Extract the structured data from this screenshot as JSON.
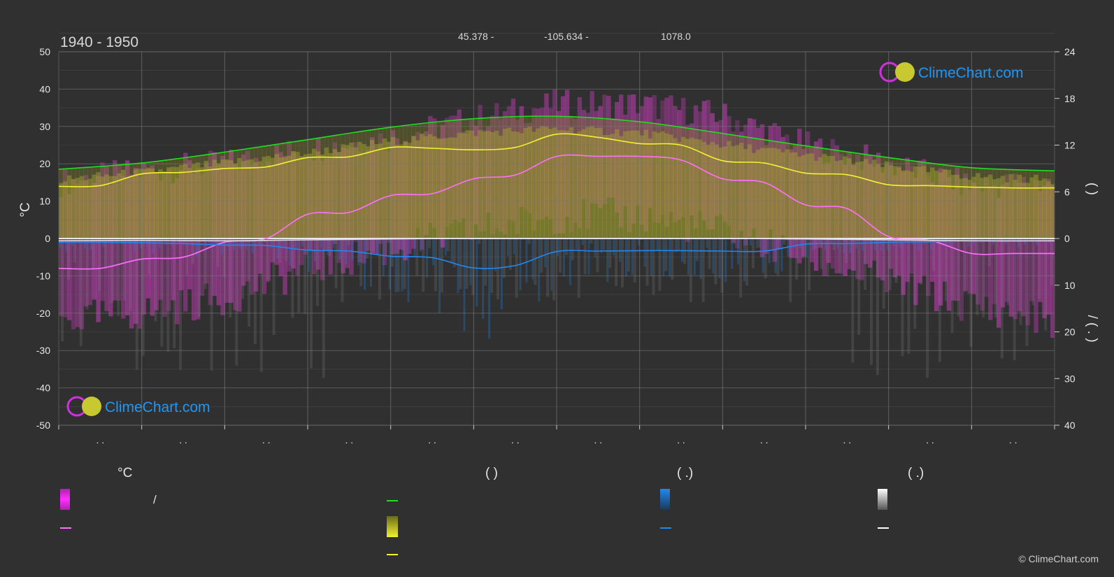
{
  "header": {
    "period": "1940 - 1950",
    "latitude": "45.378 -",
    "longitude": "-105.634 -",
    "elevation": "1078.0"
  },
  "branding": {
    "logo_text": "ClimeChart.com",
    "copyright": "© ClimeChart.com"
  },
  "colors": {
    "background": "#303030",
    "temperature_band": "#e040d0",
    "daylight": "#22dd22",
    "sunshine": "#f2f230",
    "max_temp_line": "#f2f230",
    "mean_temp_line": "#ff70ff",
    "rain": "#2288ee",
    "snow": "#dddddd"
  },
  "legend": {
    "temperature": {
      "heading": "°C",
      "range_separator": "/"
    },
    "sun": {
      "heading": "(          )"
    },
    "rain": {
      "heading": "(   .)"
    },
    "snow": {
      "heading": "(   .)"
    }
  },
  "chart_data": {
    "type": "area",
    "title": "1940 - 1950",
    "x_labels": [
      ". .",
      ". .",
      ". .",
      ". .",
      ". .",
      ". .",
      ". .",
      ". .",
      ". .",
      ". .",
      ". .",
      ". ."
    ],
    "left_axis": {
      "label": "°C",
      "ylim": [
        -50,
        50
      ],
      "ticks": [
        50,
        40,
        30,
        20,
        10,
        0,
        -10,
        -20,
        -30,
        -40,
        -50
      ]
    },
    "right_axis_top": {
      "label": "(  )",
      "range": [
        0,
        24
      ],
      "ticks": [
        24,
        18,
        12,
        6,
        0
      ]
    },
    "right_axis_bottom": {
      "label": "/ ( . )",
      "range": [
        0,
        40
      ],
      "ticks": [
        0,
        10,
        20,
        30,
        40
      ]
    },
    "grid": true,
    "series": [
      {
        "key": "daylight",
        "axis": "hours",
        "x": [
          0,
          1,
          2,
          3,
          4,
          5,
          6,
          7,
          8,
          9,
          10,
          11,
          12
        ],
        "values": [
          8.9,
          9.7,
          11.1,
          12.7,
          14.3,
          15.4,
          15.7,
          15.0,
          13.5,
          11.9,
          10.4,
          9.1,
          8.7
        ]
      },
      {
        "key": "sunshine_max_line",
        "axis": "hours",
        "x": [
          0,
          0.5,
          1,
          1.5,
          2,
          2.5,
          3,
          3.5,
          4,
          4.5,
          5,
          5.5,
          6,
          6.5,
          7,
          7.5,
          8,
          8.5,
          9,
          9.5,
          10,
          10.5,
          11,
          11.5,
          12
        ],
        "values": [
          6.7,
          6.8,
          8.3,
          8.5,
          9.0,
          9.2,
          10.4,
          10.5,
          11.7,
          11.6,
          11.4,
          11.7,
          13.4,
          13.0,
          12.2,
          12.0,
          10.0,
          9.7,
          8.4,
          8.2,
          6.9,
          6.8,
          6.6,
          6.5,
          6.5
        ]
      },
      {
        "key": "mean_temperature",
        "axis": "°C",
        "x": [
          0,
          0.5,
          1,
          1.5,
          2,
          2.5,
          3,
          3.5,
          4,
          4.5,
          5,
          5.5,
          6,
          6.5,
          7,
          7.5,
          8,
          8.5,
          9,
          9.5,
          10,
          10.5,
          11,
          11.5,
          12
        ],
        "values": [
          -8,
          -8,
          -5.5,
          -5,
          -1,
          0,
          6.5,
          7,
          11.5,
          12,
          16,
          17,
          22,
          22,
          22,
          21,
          16,
          15,
          9,
          8,
          0.5,
          -0.5,
          -4,
          -4,
          -4
        ]
      },
      {
        "key": "rain",
        "axis": "mm",
        "x": [
          0,
          0.5,
          1,
          1.5,
          2,
          2.5,
          3,
          3.5,
          4,
          4.5,
          5,
          5.5,
          6,
          6.5,
          7,
          7.5,
          8,
          8.5,
          9,
          9.5,
          10,
          10.5,
          11,
          11.5,
          12
        ],
        "values": [
          0.8,
          0.8,
          0.9,
          1.1,
          1.4,
          1.5,
          2.5,
          2.7,
          3.8,
          4.1,
          6.3,
          5.8,
          2.8,
          2.7,
          2.6,
          2.6,
          2.7,
          2.7,
          1.2,
          1.1,
          0.8,
          0.7,
          0.5,
          0.5,
          0.5
        ]
      },
      {
        "key": "snow",
        "axis": "mm",
        "x": [
          0,
          1,
          2,
          3,
          4,
          5,
          6,
          7,
          8,
          9,
          10,
          11,
          12
        ],
        "values": [
          0.5,
          0.4,
          0.5,
          0.3,
          0.1,
          0,
          0,
          0,
          0,
          0.1,
          0.3,
          0.5,
          0.5
        ]
      }
    ],
    "sunshine_band": {
      "axis": "hours",
      "x": [
        0,
        1,
        2,
        3,
        4,
        5,
        6,
        7,
        8,
        9,
        10,
        11,
        12
      ],
      "values": [
        7.5,
        8.5,
        9.7,
        11.0,
        12.5,
        13.6,
        14.1,
        13.6,
        12.1,
        10.7,
        9.3,
        8.0,
        7.5
      ]
    },
    "temperature_band": {
      "axis": "°C",
      "x": [
        0,
        1,
        2,
        3,
        4,
        5,
        6,
        7,
        8,
        9,
        10,
        11,
        12
      ],
      "max": [
        15,
        18,
        20,
        24,
        27,
        32,
        36,
        36,
        33,
        25,
        20,
        14,
        15
      ],
      "min": [
        -22,
        -20,
        -16,
        -8,
        -3,
        2,
        6,
        6,
        2,
        -5,
        -12,
        -18,
        -22
      ]
    }
  }
}
